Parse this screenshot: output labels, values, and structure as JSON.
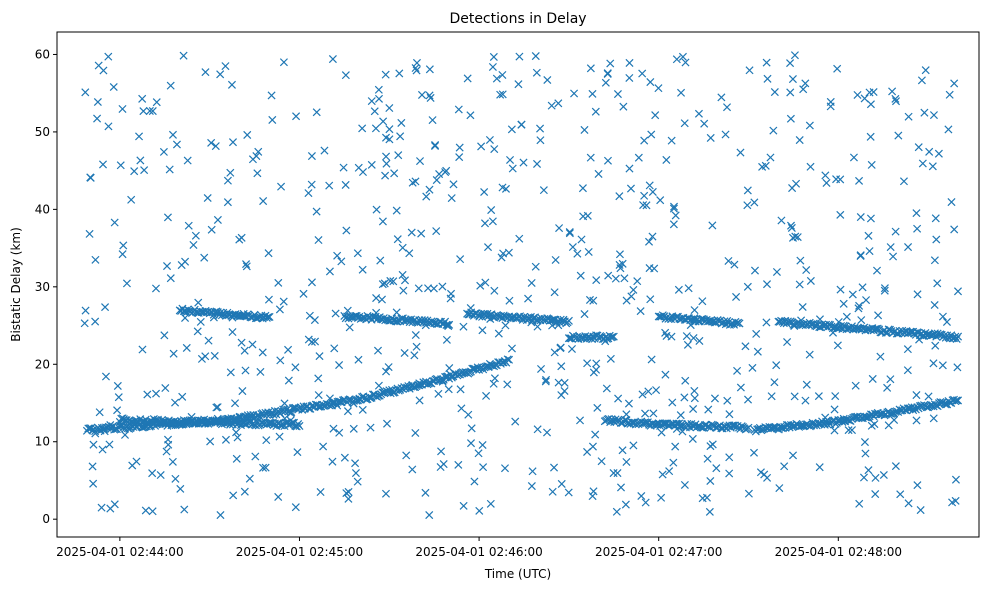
{
  "chart_data": {
    "type": "scatter",
    "title": "Detections in Delay",
    "xlabel": "Time (UTC)",
    "ylabel": "Bistatic Delay (km)",
    "x_axis_type": "datetime",
    "xlim": [
      "2025-04-01T02:43:39",
      "2025-04-01T02:48:47"
    ],
    "ylim": [
      -2.3,
      62.9
    ],
    "x_ticks": [
      {
        "value": "2025-04-01T02:44:00",
        "label": "2025-04-01 02:44:00"
      },
      {
        "value": "2025-04-01T02:45:00",
        "label": "2025-04-01 02:45:00"
      },
      {
        "value": "2025-04-01T02:46:00",
        "label": "2025-04-01 02:46:00"
      },
      {
        "value": "2025-04-01T02:47:00",
        "label": "2025-04-01 02:47:00"
      },
      {
        "value": "2025-04-01T02:48:00",
        "label": "2025-04-01 02:48:00"
      }
    ],
    "y_ticks": [
      0,
      10,
      20,
      30,
      40,
      50,
      60
    ],
    "marker": "x",
    "color": "#1f77b4",
    "grid": false,
    "legend": "none",
    "series": [
      {
        "name": "",
        "track_segments": [
          {
            "x": [
              "2025-04-01T02:43:49",
              "2025-04-01T02:44:40",
              "2025-04-01T02:45:20",
              "2025-04-01T02:45:40",
              "2025-04-01T02:46:10"
            ],
            "y": [
              11.5,
              13.0,
              15.5,
              17.3,
              20.5
            ]
          },
          {
            "x": [
              "2025-04-01T02:44:00",
              "2025-04-01T02:45:00"
            ],
            "y": [
              12.8,
              12.2
            ]
          },
          {
            "x": [
              "2025-04-01T02:44:20",
              "2025-04-01T02:44:50"
            ],
            "y": [
              27.0,
              26.0
            ]
          },
          {
            "x": [
              "2025-04-01T02:45:15",
              "2025-04-01T02:45:50"
            ],
            "y": [
              26.2,
              25.3
            ]
          },
          {
            "x": [
              "2025-04-01T02:45:56",
              "2025-04-01T02:46:30"
            ],
            "y": [
              26.5,
              25.5
            ]
          },
          {
            "x": [
              "2025-04-01T02:46:30",
              "2025-04-01T02:46:45"
            ],
            "y": [
              23.5,
              23.5
            ]
          },
          {
            "x": [
              "2025-04-01T02:46:42",
              "2025-04-01T02:47:00",
              "2025-04-01T02:47:30"
            ],
            "y": [
              12.8,
              12.2,
              11.8
            ]
          },
          {
            "x": [
              "2025-04-01T02:47:00",
              "2025-04-01T02:47:27"
            ],
            "y": [
              26.2,
              25.2
            ]
          },
          {
            "x": [
              "2025-04-01T02:47:32",
              "2025-04-01T02:48:00",
              "2025-04-01T02:48:40"
            ],
            "y": [
              11.5,
              12.6,
              15.3
            ]
          },
          {
            "x": [
              "2025-04-01T02:47:40",
              "2025-04-01T02:48:40"
            ],
            "y": [
              25.5,
              23.5
            ]
          }
        ],
        "noise": {
          "x_range": [
            "2025-04-01T02:43:48",
            "2025-04-01T02:48:40"
          ],
          "y_range": [
            0.5,
            60.0
          ],
          "count": 780
        }
      }
    ]
  }
}
